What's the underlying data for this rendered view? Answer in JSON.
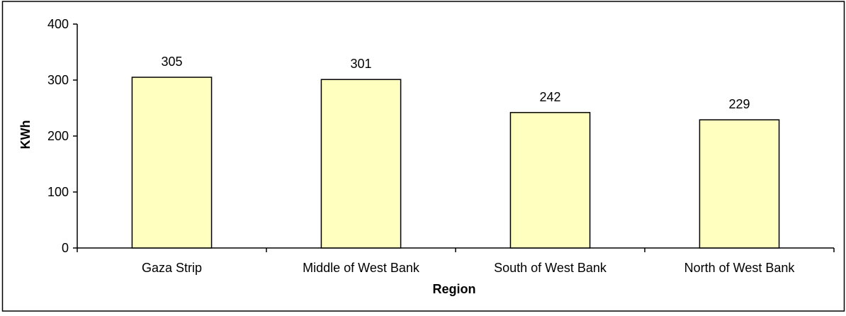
{
  "chart_data": {
    "type": "bar",
    "title": "",
    "xlabel": "Region",
    "ylabel": "KWh",
    "categories": [
      "Gaza Strip",
      "Middle of West Bank",
      "South of West Bank",
      "North of West Bank"
    ],
    "values": [
      305,
      301,
      242,
      229
    ],
    "data_labels": [
      "305",
      "301",
      "242",
      "229"
    ],
    "yticks": [
      0,
      100,
      200,
      300,
      400
    ],
    "ytick_labels": [
      "0",
      "100",
      "200",
      "300",
      "400"
    ],
    "ylim": [
      0,
      400
    ],
    "grid": false,
    "legend": false,
    "colors": {
      "bar_fill": "#FFFFC0",
      "bar_stroke": "#000000",
      "axis": "#000000",
      "border": "#000000"
    }
  }
}
